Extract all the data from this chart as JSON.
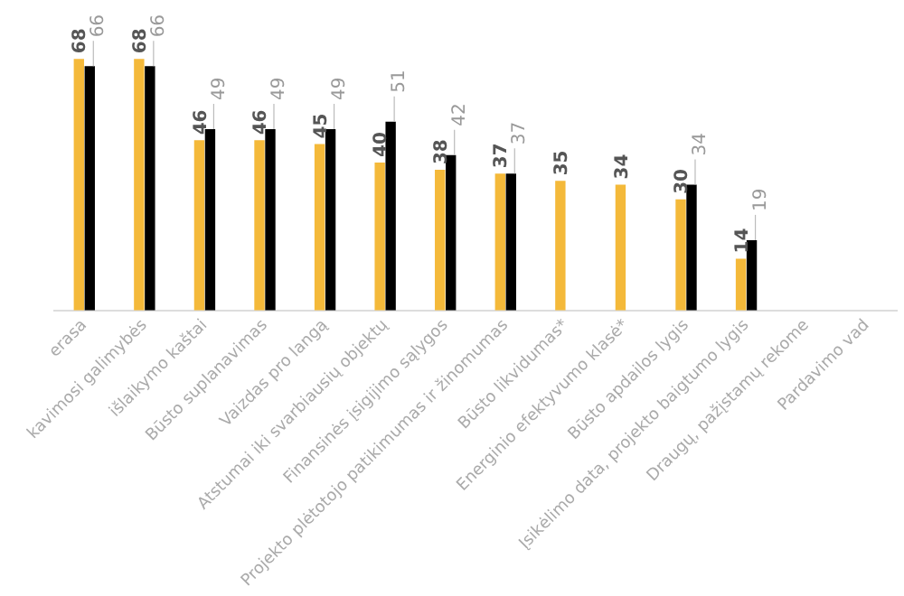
{
  "chart_data": {
    "type": "bar",
    "categories": [
      "erasa",
      "kavimosi galimybės",
      "išlaikymo kaštai",
      "Būsto suplanavimas",
      "Vaizdas pro langą",
      "Atstumai iki svarbiausių objektų",
      "Finansinės įsigijimo sąlygos",
      "Projekto plėtotojo patikimumas ir žinomumas",
      "Būsto likvidumas*",
      "Energinio efektyvumo klasė*",
      "Būsto apdailos lygis",
      "Įsikėlimo data, projekto baigtumo lygis",
      "Draugų, pažįstamų rekome",
      "Pardavimo vad"
    ],
    "series": [
      {
        "color": "#f4b93a",
        "values": [
          68,
          68,
          46,
          46,
          45,
          40,
          38,
          37,
          35,
          34,
          30,
          14,
          null,
          null
        ]
      },
      {
        "color": "#000000",
        "values": [
          66,
          66,
          49,
          49,
          49,
          51,
          42,
          37,
          null,
          null,
          34,
          19,
          null,
          null
        ]
      }
    ],
    "data_labels": true,
    "legend": false,
    "grid": false,
    "tick_labels": "x"
  }
}
